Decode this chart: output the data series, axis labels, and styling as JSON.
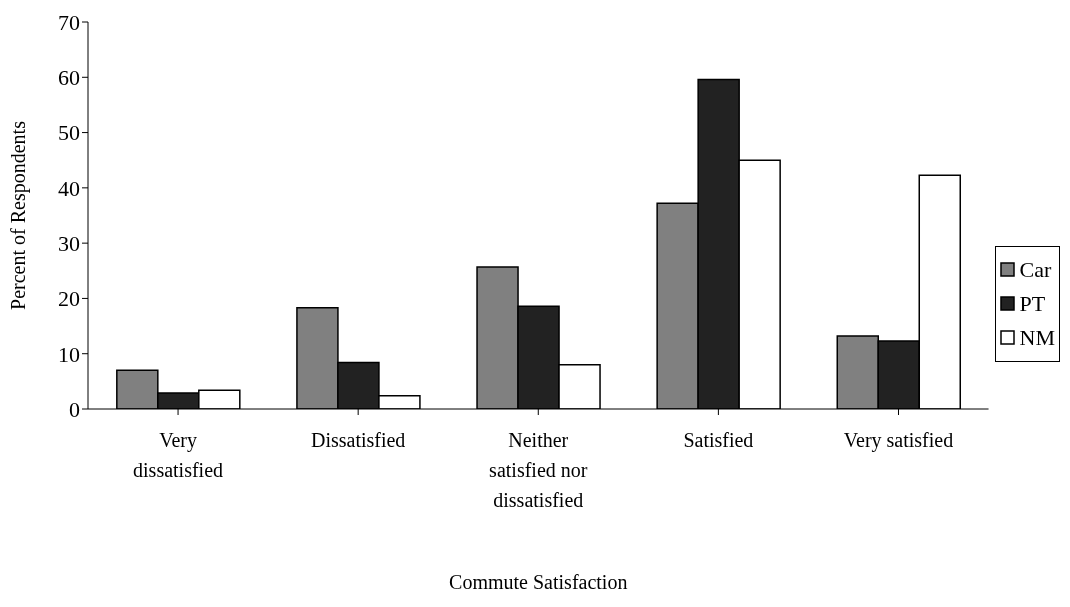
{
  "chart_data": {
    "type": "bar",
    "xlabel": "Commute Satisfaction",
    "ylabel": "Percent of Respondents",
    "categories": [
      "Very dissatisfied",
      "Dissatisfied",
      "Neither satisfied nor dissatisfied",
      "Satisfied",
      "Very satisfied"
    ],
    "series": [
      {
        "name": "Car",
        "color": "#808080",
        "values": [
          7.0,
          18.3,
          25.7,
          37.2,
          13.2
        ]
      },
      {
        "name": "PT",
        "color": "#222222",
        "values": [
          2.9,
          8.4,
          18.6,
          59.6,
          12.3
        ]
      },
      {
        "name": "NM",
        "color": "#ffffff",
        "values": [
          3.4,
          2.4,
          8.0,
          45.0,
          42.3
        ]
      }
    ],
    "ylim": [
      0,
      70
    ],
    "yticks": [
      0,
      10,
      20,
      30,
      40,
      50,
      60,
      70
    ],
    "grid": false,
    "legend": "right"
  }
}
